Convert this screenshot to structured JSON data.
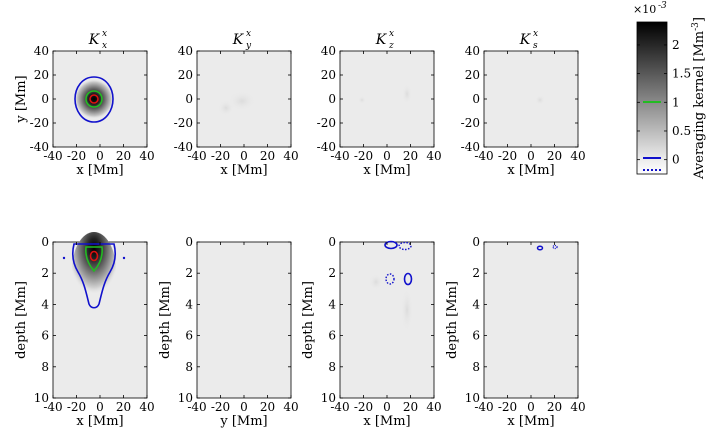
{
  "chart_data": {
    "type": "heatmap",
    "colormap": {
      "low": "#ebebeb",
      "high": "#000000"
    },
    "contour_colors": {
      "green": "#22bb22",
      "red": "#dd1111",
      "blue": "#1111cc"
    },
    "grid": false,
    "panels_top": [
      {
        "title_main": "K",
        "title_sub": "x",
        "title_sup": "x",
        "xlabel": "x [Mm]",
        "ylabel": "y [Mm]",
        "xlim": [
          -40,
          40
        ],
        "ylim": [
          -40,
          40
        ],
        "xticks": [
          "-40",
          "-20",
          "0",
          "20",
          "40"
        ],
        "yticks": [
          "40",
          "20",
          "0",
          "-20",
          "-40"
        ]
      },
      {
        "title_main": "K",
        "title_sub": "y",
        "title_sup": "x",
        "xlabel": "x [Mm]",
        "ylabel": "",
        "xlim": [
          -40,
          40
        ],
        "ylim": [
          -40,
          40
        ],
        "xticks": [
          "-40",
          "-20",
          "0",
          "20",
          "40"
        ],
        "yticks": [
          "40",
          "20",
          "0",
          "-20",
          "-40"
        ]
      },
      {
        "title_main": "K",
        "title_sub": "z",
        "title_sup": "x",
        "xlabel": "x [Mm]",
        "ylabel": "",
        "xlim": [
          -40,
          40
        ],
        "ylim": [
          -40,
          40
        ],
        "xticks": [
          "-40",
          "-20",
          "0",
          "20",
          "40"
        ],
        "yticks": [
          "40",
          "20",
          "0",
          "-20",
          "-40"
        ]
      },
      {
        "title_main": "K",
        "title_sub": "s",
        "title_sup": "x",
        "xlabel": "x [Mm]",
        "ylabel": "",
        "xlim": [
          -40,
          40
        ],
        "ylim": [
          -40,
          40
        ],
        "xticks": [
          "-40",
          "-20",
          "0",
          "20",
          "40"
        ],
        "yticks": [
          "40",
          "20",
          "0",
          "-20",
          "-40"
        ]
      }
    ],
    "panels_bottom": [
      {
        "xlabel": "x [Mm]",
        "ylabel": "depth [Mm]",
        "xlim": [
          -40,
          40
        ],
        "ylim": [
          10,
          0
        ],
        "xticks": [
          "-40",
          "-20",
          "0",
          "20",
          "40"
        ],
        "yticks": [
          "0",
          "2",
          "4",
          "6",
          "8",
          "10"
        ]
      },
      {
        "xlabel": "y [Mm]",
        "ylabel": "depth [Mm]",
        "xlim": [
          -40,
          40
        ],
        "ylim": [
          10,
          0
        ],
        "xticks": [
          "-40",
          "-20",
          "0",
          "20",
          "40"
        ],
        "yticks": [
          "0",
          "2",
          "4",
          "6",
          "8",
          "10"
        ]
      },
      {
        "xlabel": "x [Mm]",
        "ylabel": "depth [Mm]",
        "xlim": [
          -40,
          40
        ],
        "ylim": [
          10,
          0
        ],
        "xticks": [
          "-40",
          "-20",
          "0",
          "20",
          "40"
        ],
        "yticks": [
          "0",
          "2",
          "4",
          "6",
          "8",
          "10"
        ]
      },
      {
        "xlabel": "x [Mm]",
        "ylabel": "depth [Mm]",
        "xlim": [
          -40,
          40
        ],
        "ylim": [
          10,
          0
        ],
        "xticks": [
          "-40",
          "-20",
          "0",
          "20",
          "40"
        ],
        "yticks": [
          "0",
          "2",
          "4",
          "6",
          "8",
          "10"
        ]
      }
    ],
    "colorbar": {
      "label": "Averaging kernel [Mm",
      "label_sup": "-3",
      "label_end": "]",
      "exponent": "-3",
      "exponent_base": "×10",
      "range": [
        -0.25,
        2.4
      ],
      "ticks": [
        "2",
        "1.5",
        "1",
        "0.5",
        "0"
      ],
      "tick_values": [
        2,
        1.5,
        1,
        0.5,
        0
      ]
    }
  }
}
